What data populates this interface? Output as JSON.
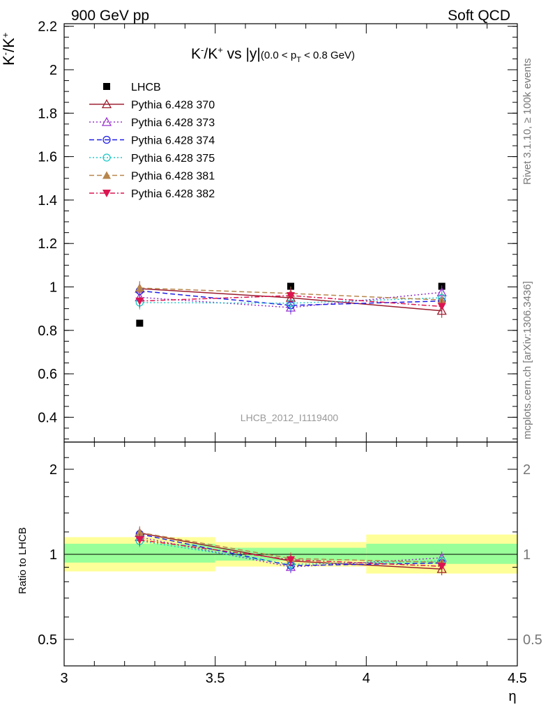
{
  "header": {
    "left": "900 GeV pp",
    "right": "Soft QCD"
  },
  "side_labels": {
    "rivet": "Rivet 3.1.10, ≥ 100k events",
    "mcplots": "mcplots.cern.ch [arXiv:1306.3436]"
  },
  "analysis_id": "LHCB_2012_I1119400",
  "colors": {
    "data": "#000000",
    "s370": "#9b1c2e",
    "s373": "#9932cc",
    "s374": "#1e1ee6",
    "s375": "#1ec8c8",
    "s381": "#b8864b",
    "s382": "#dc1450",
    "green_band": "#99ff99",
    "yellow_band": "#ffff99"
  },
  "chart_data": [
    {
      "type": "scatter",
      "title": "K⁻/K⁺ vs |y|",
      "title_main": "K-/K+ vs |y|",
      "subtitle": "(0.0 < pT < 0.8 GeV)",
      "ylabel": "K-/K+",
      "xlabel": "",
      "xlim": [
        3.0,
        4.5
      ],
      "ylim": [
        0.3,
        2.2
      ],
      "yticks": [
        "0.4",
        "0.6",
        "0.8",
        "1",
        "1.2",
        "1.4",
        "1.6",
        "1.8",
        "2",
        "2.2"
      ],
      "x": [
        3.25,
        3.75,
        4.25
      ],
      "legend_position": "top-left",
      "series": [
        {
          "name": "LHCB",
          "marker": "filled-square",
          "values": [
            0.833,
            1.003,
            1.003
          ]
        },
        {
          "name": "Pythia 6.428 370",
          "marker": "open-triangle-up",
          "line": "solid",
          "values": [
            0.992,
            0.95,
            0.89
          ]
        },
        {
          "name": "Pythia 6.428 373",
          "marker": "open-triangle-up",
          "line": "dotted",
          "values": [
            0.952,
            0.905,
            0.975
          ]
        },
        {
          "name": "Pythia 6.428 374",
          "marker": "open-circle",
          "line": "dashed",
          "values": [
            0.982,
            0.915,
            0.935
          ]
        },
        {
          "name": "Pythia 6.428 375",
          "marker": "open-circle",
          "line": "dotted",
          "values": [
            0.928,
            0.925,
            0.95
          ]
        },
        {
          "name": "Pythia 6.428 381",
          "marker": "filled-triangle-up",
          "line": "dashed",
          "values": [
            0.995,
            0.97,
            0.94
          ]
        },
        {
          "name": "Pythia 6.428 382",
          "marker": "filled-triangle-down",
          "line": "dashdot",
          "values": [
            0.935,
            0.96,
            0.91
          ]
        }
      ]
    },
    {
      "type": "scatter",
      "title": "Ratio to LHCB",
      "ylabel": "Ratio to LHCB",
      "xlabel": "η",
      "xlim": [
        3.0,
        4.5
      ],
      "ylim": [
        0.41,
        2.4
      ],
      "log_y": true,
      "yticks": [
        "0.5",
        "1",
        "2"
      ],
      "xticks": [
        "3",
        "3.5",
        "4",
        "4.5"
      ],
      "x": [
        3.25,
        3.75,
        4.25
      ],
      "bands": [
        {
          "xlo": 3.0,
          "xhi": 3.5,
          "green": [
            0.935,
            1.09
          ],
          "yellow": [
            0.87,
            1.15
          ]
        },
        {
          "xlo": 3.5,
          "xhi": 4.0,
          "green": [
            0.95,
            1.055
          ],
          "yellow": [
            0.905,
            1.105
          ]
        },
        {
          "xlo": 4.0,
          "xhi": 4.5,
          "green": [
            0.925,
            1.09
          ],
          "yellow": [
            0.855,
            1.175
          ]
        }
      ],
      "series": [
        {
          "name": "Pythia 6.428 370",
          "values": [
            1.19,
            0.947,
            0.887
          ]
        },
        {
          "name": "Pythia 6.428 373",
          "values": [
            1.15,
            0.902,
            0.972
          ]
        },
        {
          "name": "Pythia 6.428 374",
          "values": [
            1.18,
            0.912,
            0.932
          ]
        },
        {
          "name": "Pythia 6.428 375",
          "values": [
            1.115,
            0.922,
            0.947
          ]
        },
        {
          "name": "Pythia 6.428 381",
          "values": [
            1.195,
            0.967,
            0.937
          ]
        },
        {
          "name": "Pythia 6.428 382",
          "values": [
            1.125,
            0.957,
            0.907
          ]
        }
      ]
    }
  ]
}
